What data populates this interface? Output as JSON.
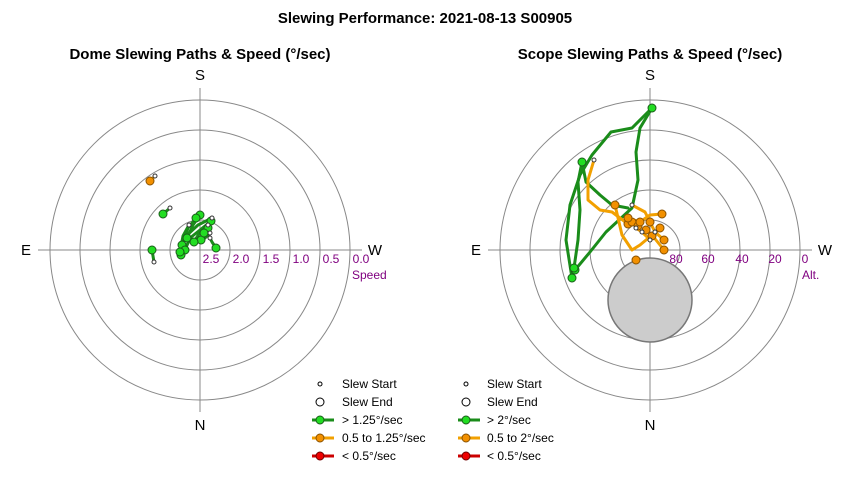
{
  "title": "Slewing Performance: 2021-08-13 S00905",
  "colors": {
    "fast": "#1a8c1a",
    "fast_fill": "#22dd22",
    "medium": "#f2a000",
    "medium_fill": "#f29000",
    "slow": "#cc0000",
    "slow_fill": "#ee0000",
    "dome": "#cccccc"
  },
  "chart_data": [
    {
      "type": "polar",
      "title": "Dome Slewing Paths & Speed (°/sec)",
      "radial_label": "Speed",
      "directions": {
        "top": "S",
        "bottom": "N",
        "left": "E",
        "right": "W"
      },
      "radial_ticks": [
        "2.5",
        "2.0",
        "1.5",
        "1.0",
        "0.5",
        "0.0"
      ],
      "legend": [
        "Slew Start",
        "Slew End",
        "> 1.25°/sec",
        "0.5 to 1.25°/sec",
        "< 0.5°/sec"
      ],
      "paths": [
        {
          "class": "fast",
          "points": [
            [
              210,
              238
            ],
            [
              212,
              242
            ],
            [
              216,
              248
            ]
          ]
        },
        {
          "class": "fast",
          "points": [
            [
              210,
              233
            ],
            [
              205,
              238
            ],
            [
              201,
              240
            ]
          ]
        },
        {
          "class": "fast",
          "points": [
            [
              208,
              225
            ],
            [
              200,
              232
            ],
            [
              194,
              242
            ]
          ]
        },
        {
          "class": "fast",
          "points": [
            [
              200,
              215
            ],
            [
              193,
              225
            ],
            [
              187,
              238
            ]
          ]
        },
        {
          "class": "fast",
          "points": [
            [
              196,
              218
            ],
            [
              188,
              228
            ],
            [
              182,
              245
            ]
          ]
        },
        {
          "class": "fast",
          "points": [
            [
              210,
              222
            ],
            [
              200,
              230
            ],
            [
              190,
              238
            ],
            [
              185,
              250
            ]
          ]
        },
        {
          "class": "fast",
          "points": [
            [
              212,
              218
            ],
            [
              198,
              225
            ],
            [
              185,
              237
            ],
            [
              181,
              255
            ]
          ]
        },
        {
          "class": "fast",
          "points": [
            [
              189,
              225
            ],
            [
              183,
              236
            ],
            [
              180,
              252
            ]
          ]
        },
        {
          "class": "fast",
          "points": [
            [
              170,
              208
            ],
            [
              163,
              214
            ]
          ]
        },
        {
          "class": "fast",
          "points": [
            [
              152,
              250
            ],
            [
              154,
              262
            ]
          ]
        },
        {
          "class": "medium",
          "points": [
            [
              155,
              176
            ],
            [
              150,
              181
            ]
          ]
        }
      ],
      "markers": [
        {
          "class": "fast",
          "points": [
            [
              216,
              248
            ],
            [
              201,
              240
            ],
            [
              194,
              242
            ],
            [
              187,
              238
            ],
            [
              182,
              245
            ],
            [
              185,
              250
            ],
            [
              181,
              255
            ],
            [
              180,
              252
            ],
            [
              163,
              214
            ],
            [
              152,
              250
            ],
            [
              211,
              221
            ],
            [
              200,
              215
            ],
            [
              196,
              218
            ],
            [
              208,
              228
            ],
            [
              204,
              233
            ]
          ]
        },
        {
          "class": "medium",
          "points": [
            [
              150,
              181
            ]
          ]
        }
      ],
      "starts": [
        [
          210,
          238
        ],
        [
          210,
          233
        ],
        [
          208,
          225
        ],
        [
          212,
          218
        ],
        [
          189,
          225
        ],
        [
          170,
          208
        ],
        [
          154,
          262
        ],
        [
          155,
          176
        ]
      ]
    },
    {
      "type": "polar",
      "title": "Scope Slewing Paths & Speed (°/sec)",
      "radial_label": "Alt.",
      "directions": {
        "top": "S",
        "bottom": "N",
        "left": "E",
        "right": "W"
      },
      "radial_ticks": [
        "80",
        "60",
        "40",
        "20",
        "0"
      ],
      "legend": [
        "Slew Start",
        "Slew End",
        "> 2°/sec",
        "0.5 to 2°/sec",
        "< 0.5°/sec"
      ],
      "paths": [
        {
          "class": "fast",
          "points": [
            [
              652,
              108
            ],
            [
              632,
              128
            ],
            [
              611,
              132
            ],
            [
              592,
              155
            ],
            [
              580,
              175
            ],
            [
              570,
              205
            ],
            [
              566,
              240
            ],
            [
              572,
              278
            ]
          ]
        },
        {
          "class": "fast",
          "points": [
            [
              652,
              108
            ],
            [
              640,
              128
            ],
            [
              636,
              152
            ],
            [
              638,
              180
            ],
            [
              632,
              208
            ],
            [
              606,
              232
            ],
            [
              590,
              252
            ],
            [
              575,
              270
            ]
          ]
        },
        {
          "class": "fast",
          "points": [
            [
              582,
              162
            ],
            [
              578,
              182
            ],
            [
              580,
              210
            ],
            [
              578,
              240
            ],
            [
              574,
              268
            ]
          ]
        },
        {
          "class": "fast",
          "points": [
            [
              582,
              162
            ],
            [
              586,
              182
            ],
            [
              600,
              195
            ],
            [
              612,
              205
            ],
            [
              628,
              208
            ]
          ]
        },
        {
          "class": "medium",
          "points": [
            [
              594,
              160
            ],
            [
              588,
              180
            ],
            [
              588,
              200
            ],
            [
              600,
              210
            ],
            [
              612,
              212
            ],
            [
              628,
              224
            ]
          ]
        },
        {
          "class": "medium",
          "points": [
            [
              615,
              205
            ],
            [
              622,
              235
            ],
            [
              632,
              250
            ],
            [
              640,
              245
            ],
            [
              652,
              235
            ],
            [
              664,
              250
            ]
          ]
        },
        {
          "class": "medium",
          "points": [
            [
              632,
              205
            ],
            [
              645,
              212
            ],
            [
              650,
              222
            ],
            [
              655,
              232
            ],
            [
              664,
              240
            ]
          ]
        },
        {
          "class": "medium",
          "points": [
            [
              628,
              218
            ],
            [
              640,
              222
            ],
            [
              650,
              215
            ],
            [
              662,
              214
            ]
          ]
        },
        {
          "class": "medium",
          "points": [
            [
              636,
              228
            ],
            [
              642,
              232
            ],
            [
              650,
              240
            ],
            [
              660,
              228
            ]
          ]
        }
      ],
      "markers": [
        {
          "class": "fast",
          "points": [
            [
              652,
              108
            ],
            [
              582,
              162
            ],
            [
              572,
              278
            ],
            [
              575,
              270
            ],
            [
              574,
              268
            ]
          ]
        },
        {
          "class": "medium",
          "points": [
            [
              615,
              205
            ],
            [
              628,
              224
            ],
            [
              632,
              222
            ],
            [
              638,
              226
            ],
            [
              646,
              230
            ],
            [
              652,
              236
            ],
            [
              660,
              228
            ],
            [
              662,
              214
            ],
            [
              664,
              240
            ],
            [
              664,
              250
            ],
            [
              636,
              260
            ],
            [
              628,
              218
            ],
            [
              640,
              222
            ],
            [
              650,
              222
            ]
          ]
        }
      ],
      "starts": [
        [
          594,
          160
        ],
        [
          632,
          205
        ],
        [
          636,
          228
        ],
        [
          642,
          232
        ],
        [
          650,
          240
        ],
        [
          655,
          232
        ]
      ]
    }
  ]
}
